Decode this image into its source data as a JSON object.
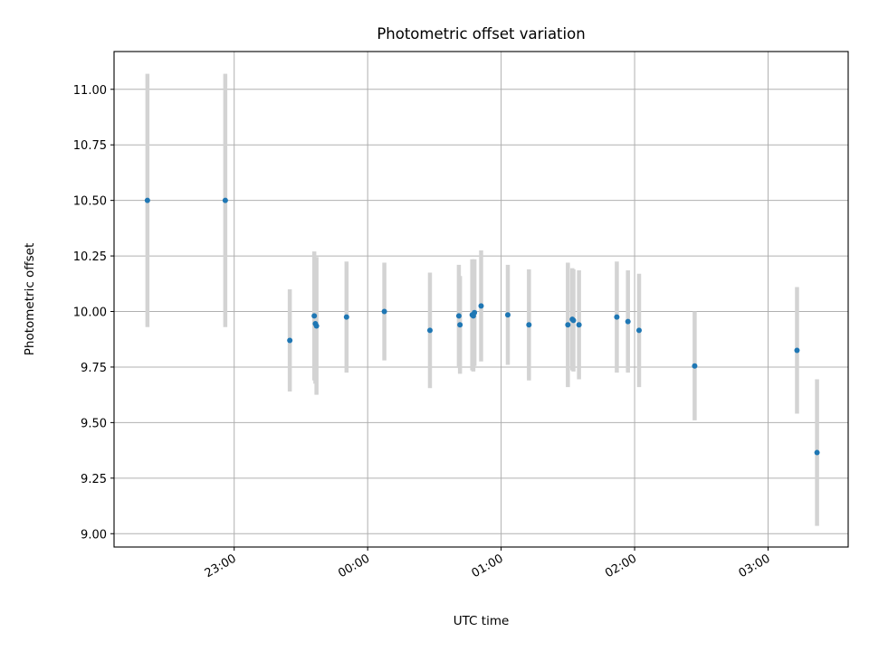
{
  "chart_data": {
    "type": "scatter",
    "title": "Photometric offset variation",
    "xlabel": "UTC time",
    "ylabel": "Photometric offset",
    "x_axis": "time (UTC, minutes relative to 00:00)",
    "xlim": [
      -114,
      216
    ],
    "ylim": [
      8.94,
      11.17
    ],
    "x_ticks": [
      {
        "value": -60,
        "label": "23:00"
      },
      {
        "value": 0,
        "label": "00:00"
      },
      {
        "value": 60,
        "label": "01:00"
      },
      {
        "value": 120,
        "label": "02:00"
      },
      {
        "value": 180,
        "label": "03:00"
      }
    ],
    "y_ticks": [
      {
        "value": 9.0,
        "label": "9.00"
      },
      {
        "value": 9.25,
        "label": "9.25"
      },
      {
        "value": 9.5,
        "label": "9.50"
      },
      {
        "value": 9.75,
        "label": "9.75"
      },
      {
        "value": 10.0,
        "label": "10.00"
      },
      {
        "value": 10.25,
        "label": "10.25"
      },
      {
        "value": 10.5,
        "label": "10.50"
      },
      {
        "value": 10.75,
        "label": "10.75"
      },
      {
        "value": 11.0,
        "label": "11.00"
      }
    ],
    "grid": true,
    "marker_color": "#1f77b4",
    "errorbar_color": "#d3d3d3",
    "points": [
      {
        "x": -99,
        "y": 10.5,
        "err": 0.57
      },
      {
        "x": -64,
        "y": 10.5,
        "err": 0.57
      },
      {
        "x": -35,
        "y": 9.87,
        "err": 0.23
      },
      {
        "x": -24,
        "y": 9.98,
        "err": 0.29
      },
      {
        "x": -23.5,
        "y": 9.945,
        "err": 0.27
      },
      {
        "x": -23,
        "y": 9.935,
        "err": 0.31
      },
      {
        "x": -9.5,
        "y": 9.975,
        "err": 0.25
      },
      {
        "x": 7.5,
        "y": 10.0,
        "err": 0.22
      },
      {
        "x": 28,
        "y": 9.915,
        "err": 0.26
      },
      {
        "x": 41,
        "y": 9.98,
        "err": 0.23
      },
      {
        "x": 41.5,
        "y": 9.94,
        "err": 0.22
      },
      {
        "x": 47,
        "y": 9.985,
        "err": 0.25
      },
      {
        "x": 47.5,
        "y": 9.98,
        "err": 0.25
      },
      {
        "x": 48,
        "y": 9.995,
        "err": 0.24
      },
      {
        "x": 51,
        "y": 10.025,
        "err": 0.25
      },
      {
        "x": 63,
        "y": 9.985,
        "err": 0.225
      },
      {
        "x": 72.5,
        "y": 9.94,
        "err": 0.25
      },
      {
        "x": 90,
        "y": 9.94,
        "err": 0.28
      },
      {
        "x": 92,
        "y": 9.965,
        "err": 0.23
      },
      {
        "x": 92.5,
        "y": 9.96,
        "err": 0.23
      },
      {
        "x": 95,
        "y": 9.94,
        "err": 0.245
      },
      {
        "x": 112,
        "y": 9.975,
        "err": 0.25
      },
      {
        "x": 117,
        "y": 9.955,
        "err": 0.23
      },
      {
        "x": 122,
        "y": 9.915,
        "err": 0.255
      },
      {
        "x": 147,
        "y": 9.755,
        "err": 0.245
      },
      {
        "x": 193,
        "y": 9.825,
        "err": 0.285
      },
      {
        "x": 202,
        "y": 9.365,
        "err": 0.33
      }
    ]
  }
}
